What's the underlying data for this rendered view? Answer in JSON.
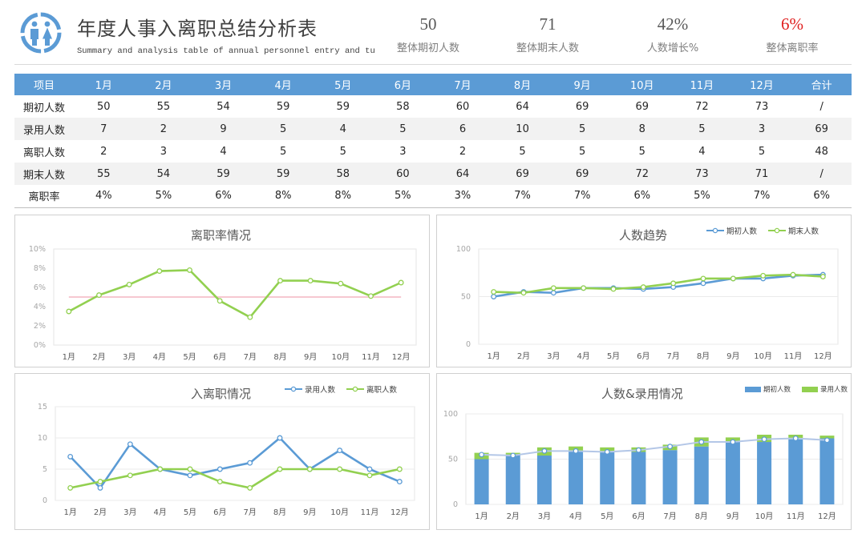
{
  "header": {
    "title": "年度人事入离职总结分析表",
    "subtitle": "Summary and analysis table of annual personnel entry and turnover",
    "kpis": [
      {
        "value": "50",
        "label": "整体期初人数",
        "color": "#595959"
      },
      {
        "value": "71",
        "label": "整体期末人数",
        "color": "#595959"
      },
      {
        "value": "42%",
        "label": "人数增长%",
        "color": "#595959"
      },
      {
        "value": "6%",
        "label": "整体离职率",
        "color": "#e02020"
      }
    ]
  },
  "table": {
    "headers": [
      "项目",
      "1月",
      "2月",
      "3月",
      "4月",
      "5月",
      "6月",
      "7月",
      "8月",
      "9月",
      "10月",
      "11月",
      "12月",
      "合计"
    ],
    "rows": [
      [
        "期初人数",
        "50",
        "55",
        "54",
        "59",
        "59",
        "58",
        "60",
        "64",
        "69",
        "69",
        "72",
        "73",
        "/"
      ],
      [
        "录用人数",
        "7",
        "2",
        "9",
        "5",
        "4",
        "5",
        "6",
        "10",
        "5",
        "8",
        "5",
        "3",
        "69"
      ],
      [
        "离职人数",
        "2",
        "3",
        "4",
        "5",
        "5",
        "3",
        "2",
        "5",
        "5",
        "5",
        "4",
        "5",
        "48"
      ],
      [
        "期末人数",
        "55",
        "54",
        "59",
        "59",
        "58",
        "60",
        "64",
        "69",
        "69",
        "72",
        "73",
        "71",
        "/"
      ],
      [
        "离职率",
        "4%",
        "5%",
        "6%",
        "8%",
        "8%",
        "5%",
        "3%",
        "7%",
        "7%",
        "6%",
        "5%",
        "7%",
        "6%"
      ]
    ]
  },
  "colors": {
    "blue": "#5b9bd5",
    "green": "#92d050",
    "ref": "#f4b6c2",
    "kpi_alert": "#e02020"
  },
  "chart_data": [
    {
      "type": "line",
      "title": "离职率情况",
      "categories": [
        "1月",
        "2月",
        "3月",
        "4月",
        "5月",
        "6月",
        "7月",
        "8月",
        "9月",
        "10月",
        "11月",
        "12月"
      ],
      "series": [
        {
          "name": "离职率",
          "values": [
            3.5,
            5.2,
            6.3,
            7.7,
            7.8,
            4.6,
            2.9,
            6.7,
            6.7,
            6.4,
            5.1,
            6.5
          ]
        }
      ],
      "reference_line": 5,
      "ylim": [
        0,
        10
      ],
      "yticks": [
        0,
        2,
        4,
        6,
        8,
        10
      ],
      "ytick_labels": [
        "0%",
        "2%",
        "4%",
        "6%",
        "8%",
        "10%"
      ]
    },
    {
      "type": "line",
      "title": "人数趋势",
      "categories": [
        "1月",
        "2月",
        "3月",
        "4月",
        "5月",
        "6月",
        "7月",
        "8月",
        "9月",
        "10月",
        "11月",
        "12月"
      ],
      "series": [
        {
          "name": "期初人数",
          "values": [
            50,
            55,
            54,
            59,
            59,
            58,
            60,
            64,
            69,
            69,
            72,
            73
          ]
        },
        {
          "name": "期末人数",
          "values": [
            55,
            54,
            59,
            59,
            58,
            60,
            64,
            69,
            69,
            72,
            73,
            71
          ]
        }
      ],
      "ylim": [
        0,
        100
      ],
      "yticks": [
        0,
        50,
        100
      ],
      "ytick_labels": [
        "0",
        "50",
        "100"
      ]
    },
    {
      "type": "line",
      "title": "入离职情况",
      "categories": [
        "1月",
        "2月",
        "3月",
        "4月",
        "5月",
        "6月",
        "7月",
        "8月",
        "9月",
        "10月",
        "11月",
        "12月"
      ],
      "series": [
        {
          "name": "录用人数",
          "values": [
            7,
            2,
            9,
            5,
            4,
            5,
            6,
            10,
            5,
            8,
            5,
            3
          ]
        },
        {
          "name": "离职人数",
          "values": [
            2,
            3,
            4,
            5,
            5,
            3,
            2,
            5,
            5,
            5,
            4,
            5
          ]
        }
      ],
      "ylim": [
        0,
        15
      ],
      "yticks": [
        0,
        5,
        10,
        15
      ],
      "ytick_labels": [
        "0",
        "5",
        "10",
        "15"
      ]
    },
    {
      "type": "bar",
      "title": "人数&录用情况",
      "categories": [
        "1月",
        "2月",
        "3月",
        "4月",
        "5月",
        "6月",
        "7月",
        "8月",
        "9月",
        "10月",
        "11月",
        "12月"
      ],
      "series": [
        {
          "name": "期初人数",
          "values": [
            50,
            55,
            54,
            59,
            59,
            58,
            60,
            64,
            69,
            69,
            72,
            73
          ]
        },
        {
          "name": "录用人数",
          "values": [
            7,
            2,
            9,
            5,
            4,
            5,
            6,
            10,
            5,
            8,
            5,
            3
          ]
        }
      ],
      "stacked": true,
      "overlay_line": {
        "name": "期末人数",
        "values": [
          55,
          54,
          59,
          59,
          58,
          60,
          64,
          69,
          69,
          72,
          73,
          71
        ]
      },
      "ylim": [
        0,
        100
      ],
      "yticks": [
        0,
        50,
        100
      ],
      "ytick_labels": [
        "0",
        "50",
        "100"
      ]
    }
  ]
}
